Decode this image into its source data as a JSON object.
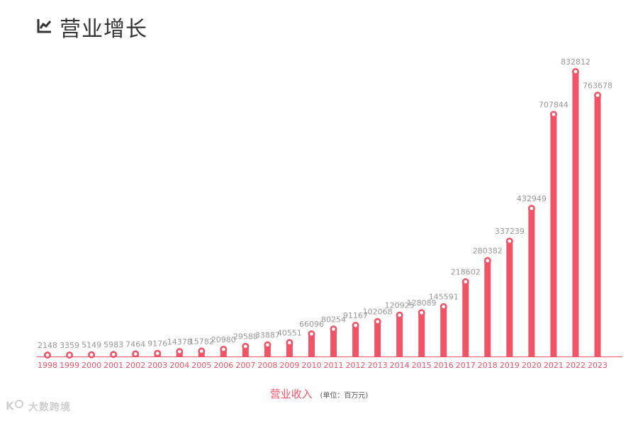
{
  "header": {
    "icon": "trend-chart-icon",
    "title": "营业增长"
  },
  "colors": {
    "bar": "#f05466",
    "value_label": "#999999",
    "axis": "#f05466"
  },
  "chart_data": {
    "type": "bar",
    "categories": [
      "1998",
      "1999",
      "2000",
      "2001",
      "2002",
      "2003",
      "2004",
      "2005",
      "2006",
      "2007",
      "2008",
      "2009",
      "2010",
      "2011",
      "2012",
      "2013",
      "2014",
      "2015",
      "2016",
      "2017",
      "2018",
      "2019",
      "2020",
      "2021",
      "2022",
      "2023"
    ],
    "values": [
      2148,
      3359,
      5149,
      5983,
      7464,
      9176,
      14378,
      15782,
      20980,
      29588,
      33887,
      40551,
      66096,
      80254,
      91167,
      102068,
      120925,
      128089,
      145591,
      218602,
      280382,
      337239,
      432949,
      707844,
      832812,
      763678
    ],
    "xlabel": "营业收入",
    "unit_note": "(单位：百万元)",
    "ylim": [
      0,
      900000
    ],
    "grid": false,
    "legend": "none"
  },
  "watermark": {
    "text": "大数跨境"
  }
}
